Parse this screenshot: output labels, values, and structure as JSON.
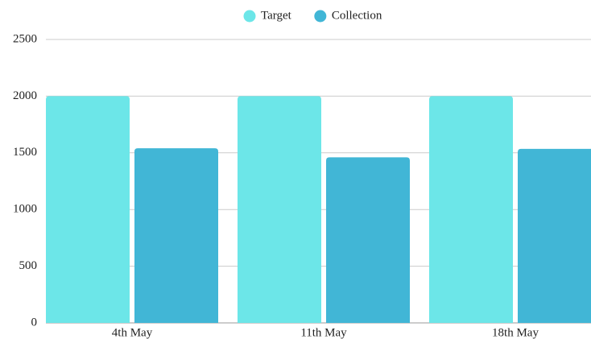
{
  "chart_data": {
    "type": "bar",
    "categories": [
      "4th May",
      "11th May",
      "18th May"
    ],
    "series": [
      {
        "name": "Target",
        "color": "#6ce6e8",
        "values": [
          2000,
          2000,
          2000
        ]
      },
      {
        "name": "Collection",
        "color": "#41b6d6",
        "values": [
          1540,
          1460,
          1535
        ]
      }
    ],
    "ylim": [
      0,
      2500
    ],
    "yticks": [
      0,
      500,
      1000,
      1500,
      2000,
      2500
    ],
    "grid": true,
    "legend": "top"
  }
}
